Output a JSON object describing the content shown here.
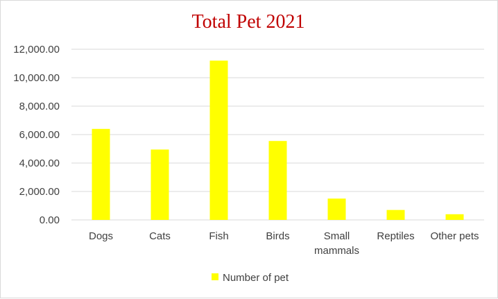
{
  "chart_data": {
    "type": "bar",
    "title": "Total Pet 2021",
    "categories": [
      [
        "Dogs"
      ],
      [
        "Cats"
      ],
      [
        "Fish"
      ],
      [
        "Birds"
      ],
      [
        "Small",
        "mammals"
      ],
      [
        "Reptiles"
      ],
      [
        "Other pets"
      ]
    ],
    "series": [
      {
        "name": "Number of pet",
        "values": [
          6400,
          4950,
          11200,
          5550,
          1500,
          700,
          400
        ]
      }
    ],
    "ylim": [
      0,
      12000
    ],
    "yticks": [
      "0.00",
      "2,000.00",
      "4,000.00",
      "6,000.00",
      "8,000.00",
      "10,000.00",
      "12,000.00"
    ],
    "ytick_values": [
      0,
      2000,
      4000,
      6000,
      8000,
      10000,
      12000
    ],
    "xlabel": "",
    "ylabel": "",
    "grid": true,
    "legend_position": "bottom",
    "colors": {
      "bar": "#FFFF00",
      "title": "#C00000",
      "grid": "#d9d9d9",
      "text": "#404040"
    }
  }
}
